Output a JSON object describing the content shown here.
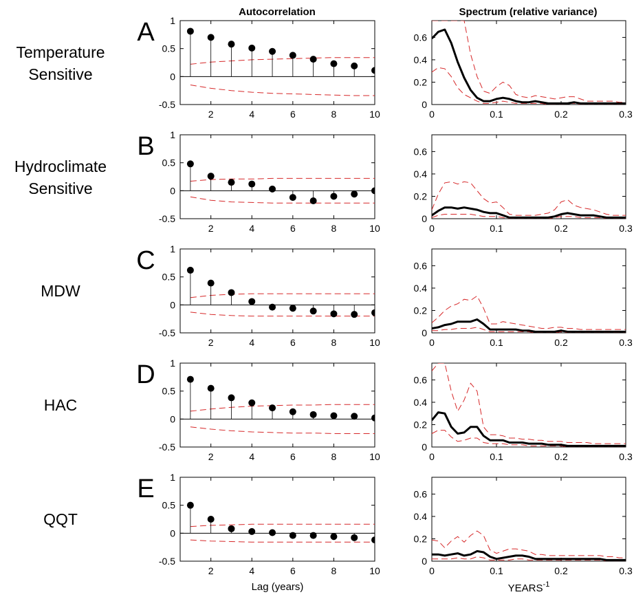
{
  "figure": {
    "column_titles": [
      "Autocorrelation",
      "Spectrum (relative variance)"
    ],
    "colors": {
      "data": "#000000",
      "confidence": "#d62728",
      "axes": "#000000"
    }
  },
  "chart_data": [
    {
      "type": "stem",
      "panel": "A",
      "row_label": [
        "Temperature",
        "Sensitive"
      ],
      "xlabel": "",
      "xlim": [
        0.5,
        10
      ],
      "ylim": [
        -0.5,
        1
      ],
      "xticks": [
        2,
        4,
        6,
        8,
        10
      ],
      "yticks": [
        -0.5,
        0,
        0.5,
        1
      ],
      "x": [
        1,
        2,
        3,
        4,
        5,
        6,
        7,
        8,
        9,
        10
      ],
      "values": [
        0.81,
        0.7,
        0.58,
        0.51,
        0.45,
        0.38,
        0.31,
        0.23,
        0.19,
        0.11
      ],
      "confidence_upper": [
        0.22,
        0.26,
        0.28,
        0.3,
        0.31,
        0.32,
        0.33,
        0.34,
        0.34,
        0.34
      ],
      "confidence_lower": [
        -0.15,
        -0.21,
        -0.25,
        -0.28,
        -0.3,
        -0.31,
        -0.32,
        -0.33,
        -0.34,
        -0.34
      ]
    },
    {
      "type": "line",
      "panel": "A",
      "xlabel": "",
      "xlim": [
        0,
        0.3
      ],
      "ylim": [
        0,
        0.75
      ],
      "xticks": [
        0,
        0.1,
        0.2,
        0.3
      ],
      "yticks": [
        0,
        0.2,
        0.4,
        0.6
      ],
      "x": [
        0,
        0.01,
        0.02,
        0.03,
        0.04,
        0.05,
        0.06,
        0.07,
        0.08,
        0.09,
        0.1,
        0.11,
        0.12,
        0.13,
        0.14,
        0.15,
        0.16,
        0.17,
        0.18,
        0.19,
        0.2,
        0.21,
        0.22,
        0.23,
        0.24,
        0.25,
        0.26,
        0.27,
        0.28,
        0.29,
        0.3
      ],
      "values": [
        0.59,
        0.65,
        0.67,
        0.55,
        0.38,
        0.24,
        0.13,
        0.06,
        0.03,
        0.03,
        0.05,
        0.06,
        0.05,
        0.03,
        0.02,
        0.02,
        0.03,
        0.02,
        0.01,
        0.01,
        0.01,
        0.01,
        0.02,
        0.01,
        0.01,
        0.01,
        0.01,
        0.01,
        0.01,
        0.01,
        0.01
      ],
      "confidence_upper": [
        0.99,
        1.05,
        1.1,
        1.0,
        0.85,
        0.75,
        0.45,
        0.25,
        0.12,
        0.1,
        0.16,
        0.2,
        0.17,
        0.09,
        0.07,
        0.06,
        0.08,
        0.07,
        0.06,
        0.05,
        0.06,
        0.07,
        0.07,
        0.05,
        0.03,
        0.03,
        0.03,
        0.03,
        0.03,
        0.02,
        0.02
      ],
      "confidence_lower": [
        0.29,
        0.33,
        0.32,
        0.25,
        0.15,
        0.09,
        0.06,
        0.03,
        0.01,
        0.01,
        0.02,
        0.03,
        0.02,
        0.01,
        0.01,
        0.01,
        0.01,
        0.01,
        0.0,
        0.0,
        0.0,
        0.01,
        0.01,
        0.0,
        0.0,
        0.0,
        0.0,
        0.0,
        0.0,
        0.0,
        0.0
      ]
    },
    {
      "type": "stem",
      "panel": "B",
      "row_label": [
        "Hydroclimate",
        "Sensitive"
      ],
      "xlabel": "",
      "xlim": [
        0.5,
        10
      ],
      "ylim": [
        -0.5,
        1
      ],
      "xticks": [
        2,
        4,
        6,
        8,
        10
      ],
      "yticks": [
        -0.5,
        0,
        0.5,
        1
      ],
      "x": [
        1,
        2,
        3,
        4,
        5,
        6,
        7,
        8,
        9,
        10
      ],
      "values": [
        0.48,
        0.26,
        0.15,
        0.12,
        0.03,
        -0.12,
        -0.18,
        -0.1,
        -0.06,
        0.0
      ],
      "confidence_upper": [
        0.17,
        0.2,
        0.21,
        0.21,
        0.22,
        0.22,
        0.22,
        0.22,
        0.22,
        0.22
      ],
      "confidence_lower": [
        -0.11,
        -0.17,
        -0.2,
        -0.21,
        -0.22,
        -0.22,
        -0.22,
        -0.22,
        -0.22,
        -0.22
      ]
    },
    {
      "type": "line",
      "panel": "B",
      "xlabel": "",
      "xlim": [
        0,
        0.3
      ],
      "ylim": [
        0,
        0.75
      ],
      "xticks": [
        0,
        0.1,
        0.2,
        0.3
      ],
      "yticks": [
        0,
        0.2,
        0.4,
        0.6
      ],
      "x": [
        0,
        0.01,
        0.02,
        0.03,
        0.04,
        0.05,
        0.06,
        0.07,
        0.08,
        0.09,
        0.1,
        0.11,
        0.12,
        0.13,
        0.14,
        0.15,
        0.16,
        0.17,
        0.18,
        0.19,
        0.2,
        0.21,
        0.22,
        0.23,
        0.24,
        0.25,
        0.26,
        0.27,
        0.28,
        0.29,
        0.3
      ],
      "values": [
        0.03,
        0.07,
        0.1,
        0.1,
        0.09,
        0.1,
        0.09,
        0.08,
        0.06,
        0.05,
        0.05,
        0.03,
        0.01,
        0.01,
        0.01,
        0.01,
        0.01,
        0.01,
        0.01,
        0.02,
        0.04,
        0.05,
        0.04,
        0.03,
        0.03,
        0.03,
        0.02,
        0.01,
        0.01,
        0.01,
        0.01
      ],
      "confidence_upper": [
        0.08,
        0.22,
        0.32,
        0.33,
        0.31,
        0.33,
        0.32,
        0.25,
        0.18,
        0.14,
        0.15,
        0.1,
        0.04,
        0.03,
        0.03,
        0.03,
        0.03,
        0.04,
        0.05,
        0.08,
        0.15,
        0.17,
        0.12,
        0.1,
        0.09,
        0.08,
        0.06,
        0.04,
        0.03,
        0.03,
        0.03
      ],
      "confidence_lower": [
        0.01,
        0.03,
        0.04,
        0.04,
        0.04,
        0.04,
        0.04,
        0.03,
        0.02,
        0.02,
        0.02,
        0.01,
        0.0,
        0.0,
        0.0,
        0.0,
        0.0,
        0.0,
        0.0,
        0.01,
        0.02,
        0.02,
        0.02,
        0.01,
        0.01,
        0.01,
        0.01,
        0.0,
        0.0,
        0.0,
        0.0
      ]
    },
    {
      "type": "stem",
      "panel": "C",
      "row_label": [
        "MDW"
      ],
      "xlabel": "",
      "xlim": [
        0.5,
        10
      ],
      "ylim": [
        -0.5,
        1
      ],
      "xticks": [
        2,
        4,
        6,
        8,
        10
      ],
      "yticks": [
        -0.5,
        0,
        0.5,
        1
      ],
      "x": [
        1,
        2,
        3,
        4,
        5,
        6,
        7,
        8,
        9,
        10
      ],
      "values": [
        0.62,
        0.39,
        0.22,
        0.06,
        -0.04,
        -0.06,
        -0.11,
        -0.16,
        -0.17,
        -0.14
      ],
      "confidence_upper": [
        0.13,
        0.17,
        0.19,
        0.2,
        0.2,
        0.2,
        0.2,
        0.2,
        0.2,
        0.2
      ],
      "confidence_lower": [
        -0.13,
        -0.17,
        -0.19,
        -0.2,
        -0.2,
        -0.2,
        -0.2,
        -0.2,
        -0.2,
        -0.2
      ]
    },
    {
      "type": "line",
      "panel": "C",
      "xlabel": "",
      "xlim": [
        0,
        0.3
      ],
      "ylim": [
        0,
        0.75
      ],
      "xticks": [
        0,
        0.1,
        0.2,
        0.3
      ],
      "yticks": [
        0,
        0.2,
        0.4,
        0.6
      ],
      "x": [
        0,
        0.01,
        0.02,
        0.03,
        0.04,
        0.05,
        0.06,
        0.07,
        0.08,
        0.09,
        0.1,
        0.11,
        0.12,
        0.13,
        0.14,
        0.15,
        0.16,
        0.17,
        0.18,
        0.19,
        0.2,
        0.21,
        0.22,
        0.23,
        0.24,
        0.25,
        0.26,
        0.27,
        0.28,
        0.29,
        0.3
      ],
      "values": [
        0.04,
        0.05,
        0.07,
        0.08,
        0.1,
        0.1,
        0.1,
        0.12,
        0.08,
        0.03,
        0.03,
        0.03,
        0.03,
        0.03,
        0.02,
        0.02,
        0.01,
        0.01,
        0.01,
        0.01,
        0.02,
        0.01,
        0.01,
        0.01,
        0.01,
        0.01,
        0.01,
        0.01,
        0.01,
        0.01,
        0.01
      ],
      "confidence_upper": [
        0.09,
        0.14,
        0.2,
        0.24,
        0.26,
        0.3,
        0.29,
        0.33,
        0.22,
        0.08,
        0.08,
        0.1,
        0.09,
        0.08,
        0.07,
        0.06,
        0.05,
        0.04,
        0.04,
        0.05,
        0.05,
        0.04,
        0.04,
        0.03,
        0.03,
        0.03,
        0.03,
        0.03,
        0.03,
        0.03,
        0.03
      ],
      "confidence_lower": [
        0.02,
        0.02,
        0.03,
        0.03,
        0.04,
        0.04,
        0.04,
        0.05,
        0.03,
        0.01,
        0.01,
        0.01,
        0.01,
        0.01,
        0.01,
        0.01,
        0.0,
        0.0,
        0.0,
        0.0,
        0.01,
        0.0,
        0.0,
        0.0,
        0.0,
        0.0,
        0.0,
        0.0,
        0.0,
        0.0,
        0.0
      ]
    },
    {
      "type": "stem",
      "panel": "D",
      "row_label": [
        "HAC"
      ],
      "xlabel": "",
      "xlim": [
        0.5,
        10
      ],
      "ylim": [
        -0.5,
        1
      ],
      "xticks": [
        2,
        4,
        6,
        8,
        10
      ],
      "yticks": [
        -0.5,
        0,
        0.5,
        1
      ],
      "x": [
        1,
        2,
        3,
        4,
        5,
        6,
        7,
        8,
        9,
        10
      ],
      "values": [
        0.71,
        0.55,
        0.38,
        0.29,
        0.2,
        0.13,
        0.08,
        0.06,
        0.05,
        0.02
      ],
      "confidence_upper": [
        0.14,
        0.18,
        0.21,
        0.23,
        0.24,
        0.25,
        0.25,
        0.26,
        0.26,
        0.26
      ],
      "confidence_lower": [
        -0.14,
        -0.18,
        -0.21,
        -0.23,
        -0.24,
        -0.25,
        -0.25,
        -0.26,
        -0.26,
        -0.26
      ]
    },
    {
      "type": "line",
      "panel": "D",
      "xlabel": "",
      "xlim": [
        0,
        0.3
      ],
      "ylim": [
        0,
        0.75
      ],
      "xticks": [
        0,
        0.1,
        0.2,
        0.3
      ],
      "yticks": [
        0,
        0.2,
        0.4,
        0.6
      ],
      "x": [
        0,
        0.01,
        0.02,
        0.03,
        0.04,
        0.05,
        0.06,
        0.07,
        0.08,
        0.09,
        0.1,
        0.11,
        0.12,
        0.13,
        0.14,
        0.15,
        0.16,
        0.17,
        0.18,
        0.19,
        0.2,
        0.21,
        0.22,
        0.23,
        0.24,
        0.25,
        0.26,
        0.27,
        0.28,
        0.29,
        0.3
      ],
      "values": [
        0.24,
        0.31,
        0.3,
        0.18,
        0.12,
        0.13,
        0.18,
        0.18,
        0.1,
        0.06,
        0.06,
        0.06,
        0.04,
        0.04,
        0.04,
        0.03,
        0.03,
        0.03,
        0.02,
        0.02,
        0.02,
        0.01,
        0.01,
        0.01,
        0.01,
        0.01,
        0.01,
        0.01,
        0.01,
        0.01,
        0.01
      ],
      "confidence_upper": [
        0.68,
        0.95,
        0.85,
        0.5,
        0.32,
        0.42,
        0.57,
        0.5,
        0.18,
        0.11,
        0.11,
        0.1,
        0.08,
        0.08,
        0.07,
        0.07,
        0.06,
        0.06,
        0.05,
        0.05,
        0.05,
        0.04,
        0.04,
        0.04,
        0.04,
        0.03,
        0.03,
        0.03,
        0.03,
        0.03,
        0.03
      ],
      "confidence_lower": [
        0.12,
        0.15,
        0.15,
        0.09,
        0.05,
        0.06,
        0.08,
        0.08,
        0.04,
        0.03,
        0.03,
        0.03,
        0.02,
        0.02,
        0.02,
        0.01,
        0.01,
        0.01,
        0.01,
        0.01,
        0.01,
        0.0,
        0.0,
        0.0,
        0.0,
        0.0,
        0.0,
        0.0,
        0.0,
        0.0,
        0.0
      ]
    },
    {
      "type": "stem",
      "panel": "E",
      "row_label": [
        "QQT"
      ],
      "xlabel": "Lag (years)",
      "xlim": [
        0.5,
        10
      ],
      "ylim": [
        -0.5,
        1
      ],
      "xticks": [
        2,
        4,
        6,
        8,
        10
      ],
      "yticks": [
        -0.5,
        0,
        0.5,
        1
      ],
      "x": [
        1,
        2,
        3,
        4,
        5,
        6,
        7,
        8,
        9,
        10
      ],
      "values": [
        0.5,
        0.25,
        0.08,
        0.03,
        0.01,
        -0.04,
        -0.04,
        -0.06,
        -0.08,
        -0.12
      ],
      "confidence_upper": [
        0.12,
        0.14,
        0.15,
        0.16,
        0.16,
        0.16,
        0.16,
        0.16,
        0.16,
        0.16
      ],
      "confidence_lower": [
        -0.12,
        -0.14,
        -0.15,
        -0.16,
        -0.16,
        -0.16,
        -0.16,
        -0.16,
        -0.16,
        -0.16
      ]
    },
    {
      "type": "line",
      "panel": "E",
      "xlabel": "YEARS",
      "xlabel_superscript": "-1",
      "xlim": [
        0,
        0.3
      ],
      "ylim": [
        0,
        0.75
      ],
      "xticks": [
        0,
        0.1,
        0.2,
        0.3
      ],
      "yticks": [
        0,
        0.2,
        0.4,
        0.6
      ],
      "x": [
        0,
        0.01,
        0.02,
        0.03,
        0.04,
        0.05,
        0.06,
        0.07,
        0.08,
        0.09,
        0.1,
        0.11,
        0.12,
        0.13,
        0.14,
        0.15,
        0.16,
        0.17,
        0.18,
        0.19,
        0.2,
        0.21,
        0.22,
        0.23,
        0.24,
        0.25,
        0.26,
        0.27,
        0.28,
        0.29,
        0.3
      ],
      "values": [
        0.06,
        0.06,
        0.05,
        0.06,
        0.07,
        0.05,
        0.06,
        0.09,
        0.08,
        0.04,
        0.02,
        0.03,
        0.04,
        0.05,
        0.05,
        0.04,
        0.02,
        0.02,
        0.02,
        0.02,
        0.02,
        0.02,
        0.02,
        0.02,
        0.02,
        0.02,
        0.02,
        0.01,
        0.01,
        0.01,
        0.01
      ],
      "confidence_upper": [
        0.19,
        0.18,
        0.12,
        0.18,
        0.22,
        0.17,
        0.23,
        0.27,
        0.23,
        0.1,
        0.07,
        0.09,
        0.11,
        0.11,
        0.1,
        0.09,
        0.06,
        0.06,
        0.05,
        0.05,
        0.05,
        0.05,
        0.05,
        0.05,
        0.05,
        0.05,
        0.05,
        0.04,
        0.04,
        0.03,
        0.03
      ],
      "confidence_lower": [
        0.02,
        0.02,
        0.02,
        0.02,
        0.03,
        0.02,
        0.02,
        0.04,
        0.03,
        0.01,
        0.01,
        0.01,
        0.01,
        0.02,
        0.02,
        0.01,
        0.01,
        0.01,
        0.01,
        0.01,
        0.01,
        0.01,
        0.01,
        0.01,
        0.01,
        0.01,
        0.01,
        0.0,
        0.0,
        0.0,
        0.0
      ]
    }
  ]
}
